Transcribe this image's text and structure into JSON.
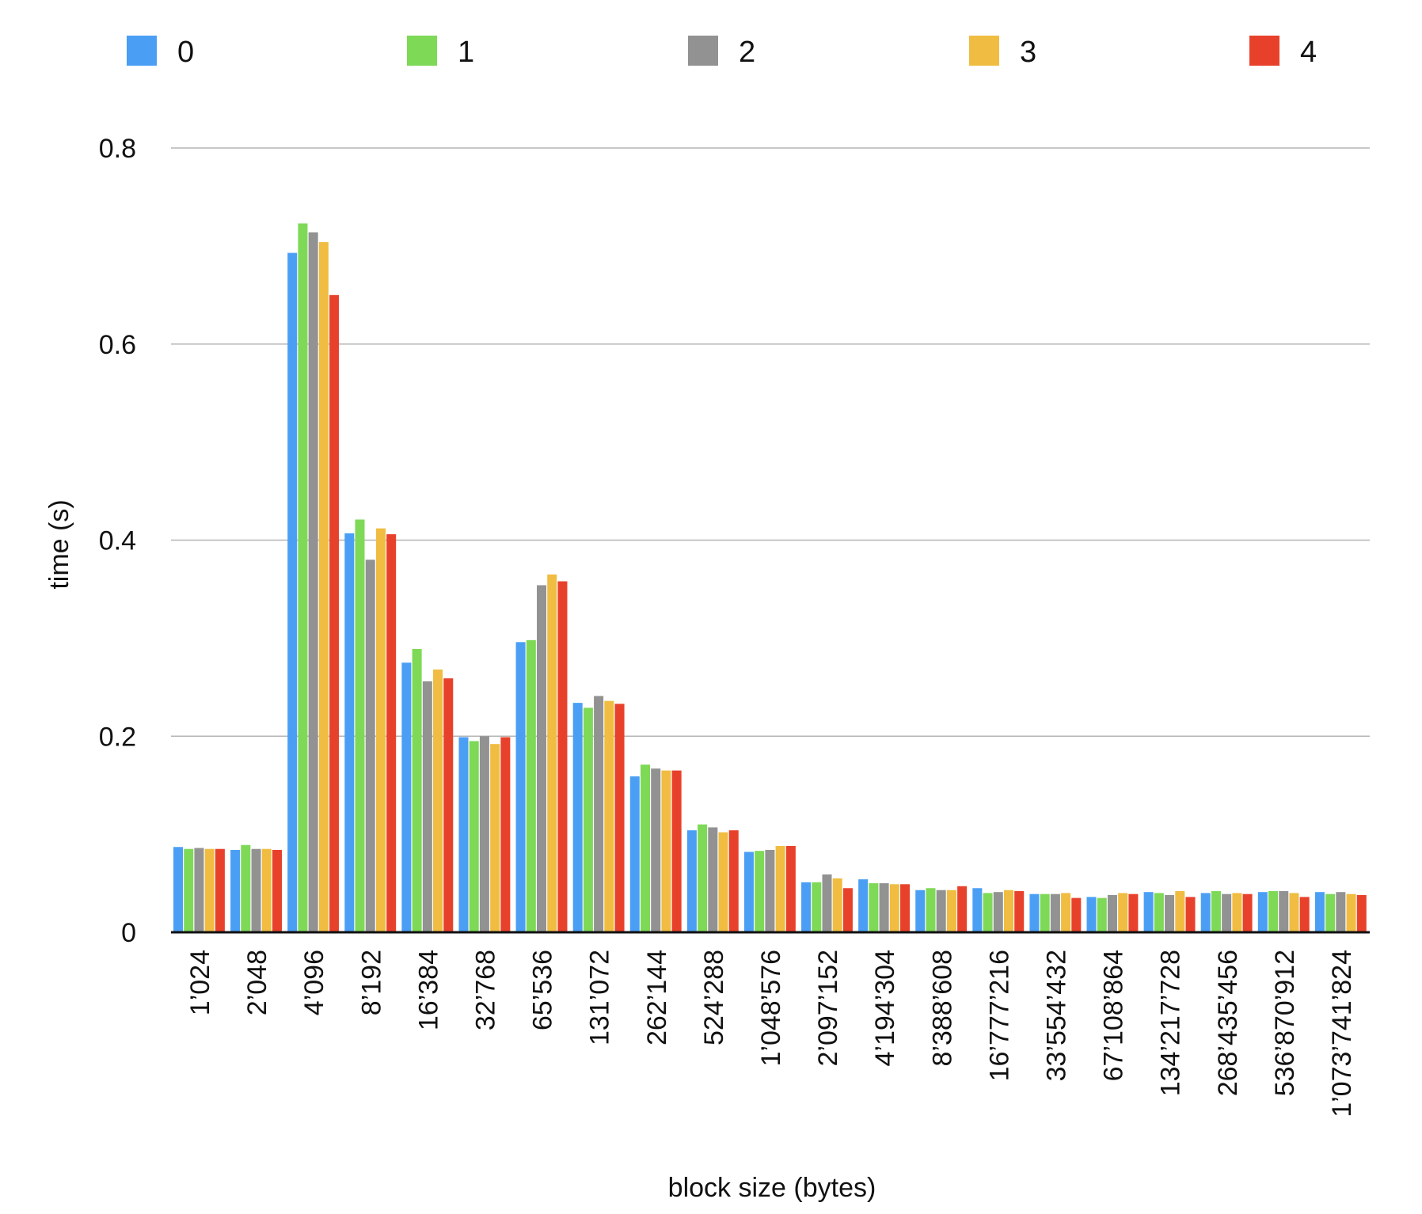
{
  "chart_data": {
    "type": "bar",
    "title": "",
    "xlabel": "block size (bytes)",
    "ylabel": "time (s)",
    "ylim": [
      0,
      0.8
    ],
    "yticks": [
      "0",
      "0.2",
      "0.4",
      "0.6",
      "0.8"
    ],
    "grid": true,
    "legend_position": "top",
    "categories": [
      "1’024",
      "2’048",
      "4’096",
      "8’192",
      "16’384",
      "32’768",
      "65’536",
      "131’072",
      "262’144",
      "524’288",
      "1’048’576",
      "2’097’152",
      "4’194’304",
      "8’388’608",
      "16’777’216",
      "33’554’432",
      "67’108’864",
      "134’217’728",
      "268’435’456",
      "536’870’912",
      "1’073’741’824"
    ],
    "series": [
      {
        "name": "0",
        "color": "#4a9ff5",
        "values": [
          0.087,
          0.084,
          0.693,
          0.407,
          0.275,
          0.199,
          0.296,
          0.234,
          0.159,
          0.104,
          0.082,
          0.051,
          0.054,
          0.043,
          0.045,
          0.039,
          0.036,
          0.041,
          0.04,
          0.041,
          0.041
        ]
      },
      {
        "name": "1",
        "color": "#7ed957",
        "values": [
          0.085,
          0.089,
          0.723,
          0.421,
          0.289,
          0.195,
          0.298,
          0.229,
          0.171,
          0.11,
          0.083,
          0.051,
          0.05,
          0.045,
          0.04,
          0.039,
          0.035,
          0.04,
          0.042,
          0.042,
          0.039
        ]
      },
      {
        "name": "2",
        "color": "#929292",
        "values": [
          0.086,
          0.085,
          0.714,
          0.38,
          0.256,
          0.2,
          0.354,
          0.241,
          0.167,
          0.107,
          0.084,
          0.059,
          0.05,
          0.043,
          0.041,
          0.039,
          0.038,
          0.038,
          0.039,
          0.042,
          0.041
        ]
      },
      {
        "name": "3",
        "color": "#f0bd42",
        "values": [
          0.085,
          0.085,
          0.704,
          0.412,
          0.268,
          0.192,
          0.365,
          0.236,
          0.165,
          0.102,
          0.088,
          0.055,
          0.049,
          0.043,
          0.043,
          0.04,
          0.04,
          0.042,
          0.04,
          0.04,
          0.039
        ]
      },
      {
        "name": "4",
        "color": "#e8412b",
        "values": [
          0.085,
          0.084,
          0.65,
          0.406,
          0.259,
          0.199,
          0.358,
          0.233,
          0.165,
          0.104,
          0.088,
          0.045,
          0.049,
          0.047,
          0.042,
          0.035,
          0.039,
          0.036,
          0.039,
          0.036,
          0.038
        ]
      }
    ]
  }
}
